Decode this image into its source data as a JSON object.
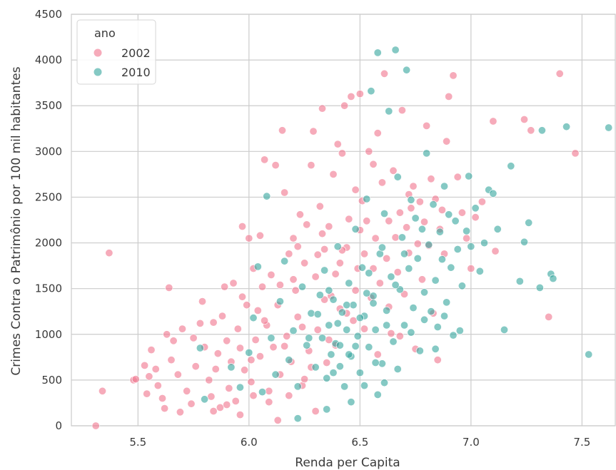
{
  "chart_data": {
    "type": "scatter",
    "title": "",
    "xlabel": "Renda per Capita",
    "ylabel": "Crimes Contra o Patrimônio por 100 mil habitantes",
    "xlim": [
      5.2,
      7.65
    ],
    "ylim": [
      0,
      4500
    ],
    "x_ticks": [
      "5.5",
      "6.0",
      "6.5",
      "7.0",
      "7.5"
    ],
    "y_ticks": [
      "0",
      "500",
      "1000",
      "1500",
      "2000",
      "2500",
      "3000",
      "3500",
      "4000",
      "4500"
    ],
    "grid": true,
    "legend": {
      "title": "ano",
      "placement": "top-left"
    },
    "series": [
      {
        "name": "2002",
        "color": "#f07890",
        "points": [
          [
            5.31,
            0
          ],
          [
            5.34,
            380
          ],
          [
            5.37,
            1890
          ],
          [
            5.48,
            500
          ],
          [
            5.49,
            510
          ],
          [
            5.53,
            660
          ],
          [
            5.54,
            350
          ],
          [
            5.55,
            540
          ],
          [
            5.56,
            830
          ],
          [
            5.58,
            620
          ],
          [
            5.59,
            440
          ],
          [
            5.61,
            300
          ],
          [
            5.62,
            190
          ],
          [
            5.63,
            1000
          ],
          [
            5.64,
            1510
          ],
          [
            5.65,
            720
          ],
          [
            5.66,
            930
          ],
          [
            5.68,
            560
          ],
          [
            5.69,
            150
          ],
          [
            5.7,
            1060
          ],
          [
            5.72,
            380
          ],
          [
            5.74,
            240
          ],
          [
            5.75,
            960
          ],
          [
            5.76,
            650
          ],
          [
            5.78,
            1120
          ],
          [
            5.79,
            1360
          ],
          [
            5.8,
            860
          ],
          [
            5.82,
            500
          ],
          [
            5.83,
            320
          ],
          [
            5.84,
            1130
          ],
          [
            5.85,
            620
          ],
          [
            5.86,
            790
          ],
          [
            5.87,
            200
          ],
          [
            5.88,
            1200
          ],
          [
            5.89,
            1520
          ],
          [
            5.9,
            930
          ],
          [
            5.91,
            410
          ],
          [
            5.92,
            700
          ],
          [
            5.93,
            1560
          ],
          [
            5.94,
            270
          ],
          [
            5.95,
            1060
          ],
          [
            5.96,
            850
          ],
          [
            5.97,
            1410
          ],
          [
            5.98,
            610
          ],
          [
            5.99,
            1320
          ],
          [
            6.0,
            2050
          ],
          [
            6.01,
            480
          ],
          [
            6.02,
            1720
          ],
          [
            6.03,
            940
          ],
          [
            6.04,
            1260
          ],
          [
            6.05,
            760
          ],
          [
            6.06,
            1520
          ],
          [
            6.07,
            2910
          ],
          [
            6.08,
            1100
          ],
          [
            6.09,
            380
          ],
          [
            6.1,
            1650
          ],
          [
            6.11,
            860
          ],
          [
            6.12,
            2850
          ],
          [
            6.13,
            1320
          ],
          [
            6.14,
            560
          ],
          [
            6.15,
            3230
          ],
          [
            6.16,
            2550
          ],
          [
            6.17,
            980
          ],
          [
            6.18,
            1880
          ],
          [
            6.19,
            700
          ],
          [
            6.2,
            2050
          ],
          [
            6.21,
            1480
          ],
          [
            6.22,
            1190
          ],
          [
            6.23,
            2310
          ],
          [
            6.24,
            440
          ],
          [
            6.25,
            1780
          ],
          [
            6.26,
            2200
          ],
          [
            6.27,
            820
          ],
          [
            6.28,
            2850
          ],
          [
            6.29,
            3220
          ],
          [
            6.3,
            1630
          ],
          [
            6.31,
            1050
          ],
          [
            6.32,
            2400
          ],
          [
            6.33,
            3470
          ],
          [
            6.34,
            1930
          ],
          [
            6.35,
            690
          ],
          [
            6.36,
            2180
          ],
          [
            6.37,
            1420
          ],
          [
            6.38,
            2750
          ],
          [
            6.39,
            880
          ],
          [
            6.4,
            3080
          ],
          [
            6.41,
            1280
          ],
          [
            6.42,
            2980
          ],
          [
            6.43,
            3500
          ],
          [
            6.44,
            1950
          ],
          [
            6.45,
            2260
          ],
          [
            6.46,
            3600
          ],
          [
            6.47,
            1150
          ],
          [
            6.48,
            2580
          ],
          [
            6.49,
            1720
          ],
          [
            6.5,
            3630
          ],
          [
            6.51,
            2460
          ],
          [
            6.52,
            1880
          ],
          [
            6.53,
            2240
          ],
          [
            6.54,
            3000
          ],
          [
            6.55,
            1400
          ],
          [
            6.56,
            2860
          ],
          [
            6.57,
            2050
          ],
          [
            6.58,
            3200
          ],
          [
            6.59,
            1560
          ],
          [
            6.6,
            2660
          ],
          [
            6.61,
            3850
          ],
          [
            6.62,
            1830
          ],
          [
            6.63,
            2240
          ],
          [
            6.64,
            1010
          ],
          [
            6.65,
            2790
          ],
          [
            6.66,
            2060
          ],
          [
            6.67,
            1680
          ],
          [
            6.68,
            2330
          ],
          [
            6.69,
            3450
          ],
          [
            6.7,
            1440
          ],
          [
            6.71,
            2170
          ],
          [
            6.72,
            1890
          ],
          [
            6.73,
            2380
          ],
          [
            6.74,
            2620
          ],
          [
            6.75,
            840
          ],
          [
            6.76,
            1990
          ],
          [
            6.77,
            2450
          ],
          [
            6.78,
            1600
          ],
          [
            6.79,
            2230
          ],
          [
            6.8,
            3280
          ],
          [
            6.81,
            1970
          ],
          [
            6.82,
            2700
          ],
          [
            6.83,
            1230
          ],
          [
            6.84,
            2480
          ],
          [
            6.85,
            720
          ],
          [
            6.86,
            2150
          ],
          [
            6.87,
            2360
          ],
          [
            6.88,
            1880
          ],
          [
            6.89,
            3110
          ],
          [
            6.9,
            3600
          ],
          [
            6.92,
            3830
          ],
          [
            6.94,
            2720
          ],
          [
            6.96,
            2330
          ],
          [
            6.98,
            2050
          ],
          [
            7.0,
            1720
          ],
          [
            7.02,
            2280
          ],
          [
            7.05,
            2450
          ],
          [
            7.1,
            3330
          ],
          [
            7.11,
            1910
          ],
          [
            7.24,
            3350
          ],
          [
            7.27,
            3230
          ],
          [
            7.35,
            1190
          ],
          [
            7.4,
            3850
          ],
          [
            7.47,
            2980
          ],
          [
            6.05,
            2080
          ],
          [
            5.97,
            2180
          ],
          [
            6.2,
            1600
          ],
          [
            6.33,
            2100
          ],
          [
            6.41,
            1780
          ],
          [
            6.25,
            510
          ],
          [
            6.18,
            330
          ],
          [
            6.09,
            260
          ],
          [
            6.3,
            160
          ],
          [
            6.13,
            60
          ],
          [
            5.9,
            230
          ],
          [
            5.84,
            160
          ],
          [
            5.96,
            120
          ],
          [
            6.02,
            330
          ],
          [
            6.28,
            640
          ],
          [
            6.36,
            940
          ],
          [
            6.44,
            1230
          ],
          [
            6.52,
            1060
          ],
          [
            6.58,
            780
          ],
          [
            6.48,
            1480
          ],
          [
            6.39,
            1660
          ],
          [
            6.31,
            1870
          ],
          [
            6.22,
            1960
          ],
          [
            6.14,
            1540
          ],
          [
            6.07,
            1150
          ],
          [
            6.01,
            720
          ],
          [
            6.16,
            870
          ],
          [
            6.24,
            1080
          ],
          [
            6.34,
            1380
          ],
          [
            6.42,
            1920
          ],
          [
            6.5,
            2140
          ],
          [
            6.56,
            1720
          ],
          [
            6.63,
            1300
          ],
          [
            6.68,
            980
          ],
          [
            6.72,
            2530
          ]
        ]
      },
      {
        "name": "2010",
        "color": "#3aa8a0",
        "points": [
          [
            5.78,
            850
          ],
          [
            5.8,
            290
          ],
          [
            5.92,
            640
          ],
          [
            5.96,
            420
          ],
          [
            6.0,
            800
          ],
          [
            6.02,
            1180
          ],
          [
            6.04,
            1740
          ],
          [
            6.06,
            370
          ],
          [
            6.08,
            2510
          ],
          [
            6.1,
            960
          ],
          [
            6.12,
            560
          ],
          [
            6.14,
            1360
          ],
          [
            6.16,
            1800
          ],
          [
            6.18,
            720
          ],
          [
            6.2,
            1040
          ],
          [
            6.22,
            430
          ],
          [
            6.24,
            1520
          ],
          [
            6.26,
            880
          ],
          [
            6.28,
            1230
          ],
          [
            6.3,
            640
          ],
          [
            6.32,
            1430
          ],
          [
            6.33,
            960
          ],
          [
            6.34,
            1700
          ],
          [
            6.35,
            520
          ],
          [
            6.36,
            1100
          ],
          [
            6.37,
            780
          ],
          [
            6.38,
            1380
          ],
          [
            6.39,
            900
          ],
          [
            6.4,
            1960
          ],
          [
            6.41,
            650
          ],
          [
            6.42,
            1240
          ],
          [
            6.43,
            430
          ],
          [
            6.44,
            1050
          ],
          [
            6.45,
            1560
          ],
          [
            6.46,
            760
          ],
          [
            6.47,
            1320
          ],
          [
            6.48,
            2150
          ],
          [
            6.49,
            980
          ],
          [
            6.5,
            580
          ],
          [
            6.51,
            1730
          ],
          [
            6.52,
            1200
          ],
          [
            6.53,
            2480
          ],
          [
            6.54,
            860
          ],
          [
            6.55,
            3660
          ],
          [
            6.56,
            1420
          ],
          [
            6.57,
            1050
          ],
          [
            6.58,
            4080
          ],
          [
            6.59,
            1880
          ],
          [
            6.6,
            680
          ],
          [
            6.61,
            2320
          ],
          [
            6.62,
            1260
          ],
          [
            6.63,
            3440
          ],
          [
            6.64,
            1630
          ],
          [
            6.65,
            920
          ],
          [
            6.66,
            4110
          ],
          [
            6.67,
            2720
          ],
          [
            6.68,
            1490
          ],
          [
            6.69,
            2060
          ],
          [
            6.7,
            1100
          ],
          [
            6.71,
            3890
          ],
          [
            6.72,
            1720
          ],
          [
            6.73,
            2470
          ],
          [
            6.74,
            1290
          ],
          [
            6.75,
            2270
          ],
          [
            6.76,
            1830
          ],
          [
            6.77,
            820
          ],
          [
            6.78,
            2150
          ],
          [
            6.79,
            1460
          ],
          [
            6.8,
            2980
          ],
          [
            6.81,
            1980
          ],
          [
            6.82,
            1250
          ],
          [
            6.83,
            2420
          ],
          [
            6.84,
            1590
          ],
          [
            6.85,
            1080
          ],
          [
            6.86,
            2120
          ],
          [
            6.87,
            1820
          ],
          [
            6.88,
            2620
          ],
          [
            6.89,
            1350
          ],
          [
            6.9,
            2310
          ],
          [
            6.91,
            1730
          ],
          [
            6.92,
            990
          ],
          [
            6.93,
            2240
          ],
          [
            6.94,
            1930
          ],
          [
            6.96,
            1530
          ],
          [
            6.98,
            2130
          ],
          [
            7.0,
            1960
          ],
          [
            7.02,
            2380
          ],
          [
            7.04,
            1690
          ],
          [
            7.06,
            2000
          ],
          [
            7.08,
            2580
          ],
          [
            7.1,
            2540
          ],
          [
            7.12,
            2150
          ],
          [
            7.15,
            1050
          ],
          [
            7.18,
            2840
          ],
          [
            7.22,
            1580
          ],
          [
            7.24,
            2010
          ],
          [
            7.26,
            2220
          ],
          [
            7.31,
            1510
          ],
          [
            7.32,
            3230
          ],
          [
            7.36,
            1660
          ],
          [
            7.37,
            1610
          ],
          [
            7.43,
            3270
          ],
          [
            7.53,
            780
          ],
          [
            7.62,
            3260
          ],
          [
            6.99,
            2730
          ],
          [
            6.46,
            260
          ],
          [
            6.52,
            440
          ],
          [
            6.58,
            340
          ],
          [
            6.35,
            180
          ],
          [
            6.22,
            80
          ],
          [
            6.44,
            1320
          ],
          [
            6.4,
            1120
          ],
          [
            6.48,
            870
          ],
          [
            6.56,
            1340
          ],
          [
            6.62,
            1100
          ],
          [
            6.36,
            1480
          ],
          [
            6.31,
            1220
          ],
          [
            6.27,
            960
          ],
          [
            6.54,
            1670
          ],
          [
            6.6,
            1950
          ],
          [
            6.66,
            1540
          ],
          [
            6.7,
            1880
          ],
          [
            6.45,
            780
          ],
          [
            6.5,
            1180
          ],
          [
            6.53,
            1450
          ],
          [
            6.41,
            880
          ],
          [
            6.38,
            580
          ],
          [
            6.57,
            690
          ],
          [
            6.61,
            470
          ],
          [
            6.67,
            620
          ],
          [
            6.73,
            1020
          ],
          [
            6.79,
            1160
          ],
          [
            6.84,
            840
          ],
          [
            6.88,
            1200
          ],
          [
            6.95,
            1040
          ]
        ]
      }
    ]
  }
}
